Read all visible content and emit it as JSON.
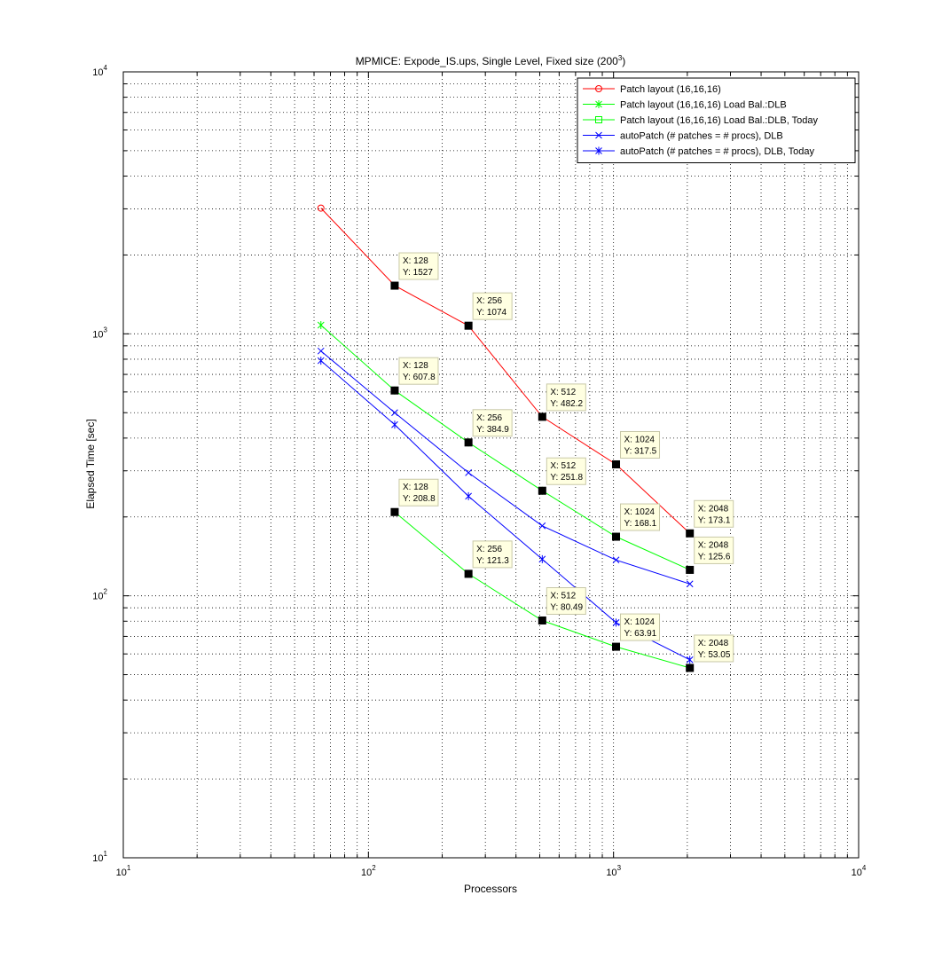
{
  "chart_data": {
    "type": "line",
    "title": "MPMICE: Expode_IS.ups, Single Level, Fixed size (200",
    "title_superscript": "3",
    "title_close": ")",
    "xlabel": "Processors",
    "ylabel": "Elapsed Time [sec]",
    "xscale": "log",
    "yscale": "log",
    "xlim": [
      10,
      10000
    ],
    "ylim": [
      10,
      10000
    ],
    "grid": true,
    "legend_position": "top-right",
    "x_ticks": [
      {
        "base": "10",
        "exp": "1",
        "value": 10
      },
      {
        "base": "10",
        "exp": "2",
        "value": 100
      },
      {
        "base": "10",
        "exp": "3",
        "value": 1000
      },
      {
        "base": "10",
        "exp": "4",
        "value": 10000
      }
    ],
    "y_ticks": [
      {
        "base": "10",
        "exp": "1",
        "value": 10
      },
      {
        "base": "10",
        "exp": "2",
        "value": 100
      },
      {
        "base": "10",
        "exp": "3",
        "value": 1000
      },
      {
        "base": "10",
        "exp": "4",
        "value": 10000
      }
    ],
    "series": [
      {
        "name": "Patch layout (16,16,16)",
        "color": "#ff0000",
        "marker": "circle",
        "x": [
          64,
          128,
          256,
          512,
          1024,
          2048
        ],
        "y": [
          3020,
          1527,
          1074,
          482.2,
          317.5,
          173.1
        ]
      },
      {
        "name": "Patch layout (16,16,16) Load Bal.:DLB",
        "color": "#00ff00",
        "marker": "asterisk",
        "x": [
          64,
          128,
          256,
          512,
          1024,
          2048
        ],
        "y": [
          1080,
          607.8,
          384.9,
          251.8,
          168.1,
          125.6
        ]
      },
      {
        "name": "Patch layout (16,16,16) Load Bal.:DLB, Today",
        "color": "#00ff00",
        "marker": "square",
        "x": [
          128,
          256,
          512,
          1024,
          2048
        ],
        "y": [
          208.8,
          121.3,
          80.49,
          63.91,
          53.05
        ]
      },
      {
        "name": "autoPatch (# patches = # procs), DLB",
        "color": "#0000ff",
        "marker": "x",
        "x": [
          64,
          128,
          256,
          512,
          1024,
          2048
        ],
        "y": [
          860,
          500,
          295,
          185,
          137,
          111
        ]
      },
      {
        "name": "autoPatch (# patches = # procs), DLB, Today",
        "color": "#0000ff",
        "marker": "asterisk",
        "x": [
          64,
          128,
          256,
          512,
          1024,
          2048
        ],
        "y": [
          790,
          450,
          240,
          138,
          79,
          57
        ]
      }
    ],
    "datatips": [
      {
        "x": 128,
        "y": 1527,
        "lines": [
          "X: 128",
          "Y: 1527"
        ]
      },
      {
        "x": 256,
        "y": 1074,
        "lines": [
          "X: 256",
          "Y: 1074"
        ]
      },
      {
        "x": 512,
        "y": 482.2,
        "lines": [
          "X: 512",
          "Y: 482.2"
        ]
      },
      {
        "x": 1024,
        "y": 317.5,
        "lines": [
          "X: 1024",
          "Y: 317.5"
        ]
      },
      {
        "x": 2048,
        "y": 173.1,
        "lines": [
          "X: 2048",
          "Y: 173.1"
        ]
      },
      {
        "x": 128,
        "y": 607.8,
        "lines": [
          "X: 128",
          "Y: 607.8"
        ]
      },
      {
        "x": 256,
        "y": 384.9,
        "lines": [
          "X: 256",
          "Y: 384.9"
        ]
      },
      {
        "x": 512,
        "y": 251.8,
        "lines": [
          "X: 512",
          "Y: 251.8"
        ]
      },
      {
        "x": 1024,
        "y": 168.1,
        "lines": [
          "X: 1024",
          "Y: 168.1"
        ]
      },
      {
        "x": 2048,
        "y": 125.6,
        "lines": [
          "X: 2048",
          "Y: 125.6"
        ]
      },
      {
        "x": 128,
        "y": 208.8,
        "lines": [
          "X: 128",
          "Y: 208.8"
        ]
      },
      {
        "x": 256,
        "y": 121.3,
        "lines": [
          "X: 256",
          "Y: 121.3"
        ]
      },
      {
        "x": 512,
        "y": 80.49,
        "lines": [
          "X: 512",
          "Y: 80.49"
        ]
      },
      {
        "x": 1024,
        "y": 63.91,
        "lines": [
          "X: 1024",
          "Y: 63.91"
        ]
      },
      {
        "x": 2048,
        "y": 53.05,
        "lines": [
          "X: 2048",
          "Y: 53.05"
        ]
      }
    ]
  }
}
